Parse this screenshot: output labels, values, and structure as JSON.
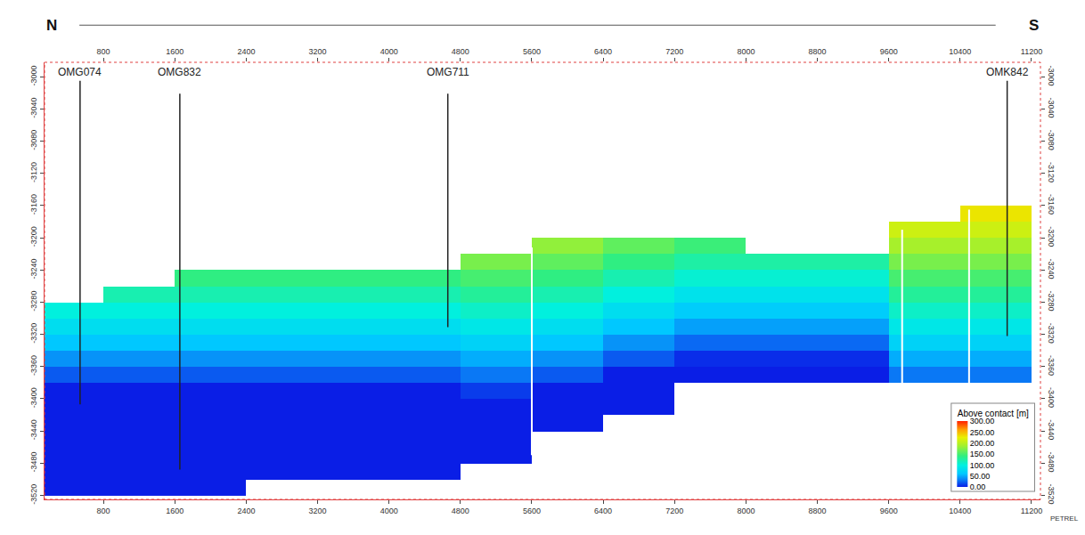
{
  "chart_data": {
    "type": "heatmap",
    "direction_labels": [
      "N",
      "S"
    ],
    "x": [
      400,
      1200,
      2000,
      2800,
      3600,
      4400,
      5200,
      6000,
      6800,
      7600,
      8400,
      9200,
      10000,
      10800
    ],
    "y": [
      -3170,
      -3190,
      -3210,
      -3230,
      -3250,
      -3270,
      -3290,
      -3310,
      -3330,
      -3350,
      -3370,
      -3390,
      -3410,
      -3430,
      -3450,
      -3470,
      -3490,
      -3510
    ],
    "z": [
      [
        null,
        null,
        null,
        null,
        null,
        null,
        null,
        null,
        null,
        null,
        null,
        null,
        null,
        230
      ],
      [
        null,
        null,
        null,
        null,
        null,
        null,
        null,
        null,
        null,
        null,
        null,
        null,
        210,
        210
      ],
      [
        null,
        null,
        null,
        null,
        null,
        null,
        null,
        180,
        160,
        145,
        null,
        null,
        190,
        190
      ],
      [
        null,
        null,
        null,
        null,
        null,
        null,
        170,
        160,
        140,
        125,
        125,
        125,
        170,
        170
      ],
      [
        null,
        null,
        140,
        140,
        140,
        140,
        150,
        140,
        120,
        105,
        105,
        105,
        150,
        150
      ],
      [
        null,
        120,
        120,
        120,
        120,
        120,
        130,
        120,
        100,
        85,
        85,
        85,
        130,
        130
      ],
      [
        100,
        100,
        100,
        100,
        100,
        100,
        110,
        100,
        80,
        65,
        65,
        65,
        110,
        110
      ],
      [
        80,
        80,
        80,
        80,
        80,
        80,
        90,
        80,
        60,
        45,
        45,
        45,
        90,
        90
      ],
      [
        60,
        60,
        60,
        60,
        60,
        60,
        70,
        60,
        40,
        25,
        25,
        25,
        70,
        70
      ],
      [
        40,
        40,
        40,
        40,
        40,
        40,
        50,
        40,
        20,
        5,
        5,
        5,
        50,
        50
      ],
      [
        20,
        20,
        20,
        20,
        20,
        20,
        30,
        20,
        0,
        0,
        0,
        0,
        30,
        30
      ],
      [
        0,
        0,
        0,
        0,
        0,
        0,
        10,
        0,
        0,
        null,
        null,
        null,
        null,
        null
      ],
      [
        0,
        0,
        0,
        0,
        0,
        0,
        0,
        0,
        0,
        null,
        null,
        null,
        null,
        null
      ],
      [
        0,
        0,
        0,
        0,
        0,
        0,
        0,
        0,
        null,
        null,
        null,
        null,
        null,
        null
      ],
      [
        0,
        0,
        0,
        0,
        0,
        0,
        0,
        null,
        null,
        null,
        null,
        null,
        null,
        null
      ],
      [
        0,
        0,
        0,
        0,
        0,
        0,
        0,
        null,
        null,
        null,
        null,
        null,
        null,
        null
      ],
      [
        0,
        0,
        0,
        0,
        0,
        0,
        null,
        null,
        null,
        null,
        null,
        null,
        null,
        null
      ],
      [
        0,
        0,
        0,
        null,
        null,
        null,
        null,
        null,
        null,
        null,
        null,
        null,
        null,
        null
      ]
    ],
    "colorbar": {
      "title": "Above contact [m]",
      "range": [
        0,
        300
      ],
      "ticks": [
        {
          "value": 300,
          "label": "300.00"
        },
        {
          "value": 250,
          "label": "250.00"
        },
        {
          "value": 200,
          "label": "200.00"
        },
        {
          "value": 150,
          "label": "150.00"
        },
        {
          "value": 100,
          "label": "100.00"
        },
        {
          "value": 50,
          "label": "50.00"
        },
        {
          "value": 0,
          "label": "0.00"
        }
      ]
    },
    "xlim": [
      140,
      11300
    ],
    "xticks": [
      800,
      1600,
      2400,
      3200,
      4000,
      4800,
      5600,
      6400,
      7200,
      8000,
      8800,
      9600,
      10400,
      11200
    ],
    "ylim": [
      -3525,
      -2982
    ],
    "yticks": [
      -3000,
      -3040,
      -3080,
      -3120,
      -3160,
      -3200,
      -3240,
      -3280,
      -3320,
      -3360,
      -3400,
      -3440,
      -3480,
      -3520
    ],
    "wells": [
      {
        "name": "OMG074",
        "x": 538,
        "top": -3005,
        "bottom": -3407
      },
      {
        "name": "OMG832",
        "x": 1656,
        "top": -3021,
        "bottom": -3488
      },
      {
        "name": "OMG711",
        "x": 4659,
        "top": -3021,
        "bottom": -3311
      },
      {
        "name": "OMK842",
        "x": 10927,
        "top": -3005,
        "bottom": -3322
      }
    ],
    "faults": [
      {
        "x": 5600,
        "top": -3212,
        "bottom": -3470
      },
      {
        "x": 9750,
        "top": -3190,
        "bottom": -3390
      },
      {
        "x": 10500,
        "top": -3165,
        "bottom": -3385
      }
    ],
    "watermark": "PETREL"
  }
}
